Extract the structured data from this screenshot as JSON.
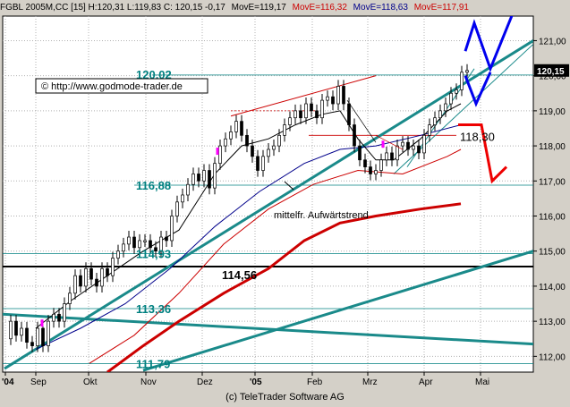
{
  "header": {
    "symbol_line": "FGBL 2005M,CC [15] H:120,31 L:119,83 C: 120,15 -0,17",
    "ma1": "MovE=119,17",
    "ma2": "MovE=116,32",
    "ma3": "MovE=118,63",
    "ma4": "MovE=117,91",
    "colors": {
      "ma1": "#000000",
      "ma2": "#cc0000",
      "ma3": "#00008b",
      "ma4": "#cc0000"
    }
  },
  "footer": "(c) TeleTrader Software AG",
  "chart_data": {
    "type": "candlestick",
    "x_tick_labels": [
      "'04",
      "Sep",
      "Okt",
      "Nov",
      "Dez",
      "'05",
      "Feb",
      "Mrz",
      "Apr",
      "Mai"
    ],
    "y_tick_labels": [
      "112,00",
      "113,00",
      "114,00",
      "115,00",
      "116,00",
      "117,00",
      "118,00",
      "119,00",
      "120,00",
      "121,00"
    ],
    "ylim": [
      111.55,
      121.7
    ],
    "last_price": "120,15",
    "levels": [
      {
        "label": "120,02",
        "value": 120.02,
        "color": "#008080"
      },
      {
        "label": "116,88",
        "value": 116.88,
        "color": "#008080"
      },
      {
        "label": "114,93",
        "value": 114.93,
        "color": "#008080"
      },
      {
        "label": "114,56",
        "value": 114.56,
        "color": "#000000"
      },
      {
        "label": "113,36",
        "value": 113.36,
        "color": "#008080"
      },
      {
        "label": "111,79",
        "value": 111.79,
        "color": "#008080"
      },
      {
        "label": "118,30",
        "value": 118.3,
        "color": "#cc0000"
      }
    ],
    "annotations": [
      {
        "text": "© http://www.godmode-trader.de"
      },
      {
        "text": "mittelfr. Aufwärtstrend"
      }
    ],
    "price_path": [
      [
        0,
        112.5
      ],
      [
        6,
        113.0
      ],
      [
        12,
        112.6
      ],
      [
        18,
        112.8
      ],
      [
        24,
        112.4
      ],
      [
        30,
        112.3
      ],
      [
        36,
        112.8
      ],
      [
        42,
        112.3
      ],
      [
        48,
        113.0
      ],
      [
        54,
        113.2
      ],
      [
        60,
        113.0
      ],
      [
        66,
        113.5
      ],
      [
        72,
        113.8
      ],
      [
        78,
        114.3
      ],
      [
        84,
        114.0
      ],
      [
        90,
        114.5
      ],
      [
        96,
        114.2
      ],
      [
        102,
        114.0
      ],
      [
        108,
        114.5
      ],
      [
        114,
        114.3
      ],
      [
        120,
        114.8
      ],
      [
        126,
        115.0
      ],
      [
        132,
        115.2
      ],
      [
        138,
        115.4
      ],
      [
        144,
        115.1
      ],
      [
        150,
        115.3
      ],
      [
        156,
        115.3
      ],
      [
        162,
        115.1
      ],
      [
        168,
        115.0
      ],
      [
        174,
        115.4
      ],
      [
        180,
        115.3
      ],
      [
        186,
        116.0
      ],
      [
        192,
        116.4
      ],
      [
        198,
        116.6
      ],
      [
        204,
        116.9
      ],
      [
        210,
        117.2
      ],
      [
        216,
        117.0
      ],
      [
        222,
        117.3
      ],
      [
        228,
        116.8
      ],
      [
        234,
        117.5
      ],
      [
        240,
        118.0
      ],
      [
        246,
        118.2
      ],
      [
        252,
        118.4
      ],
      [
        258,
        118.7
      ],
      [
        264,
        118.3
      ],
      [
        270,
        118.0
      ],
      [
        276,
        117.7
      ],
      [
        282,
        117.3
      ],
      [
        288,
        117.7
      ],
      [
        294,
        117.9
      ],
      [
        300,
        118.0
      ],
      [
        306,
        118.3
      ],
      [
        312,
        118.6
      ],
      [
        318,
        118.8
      ],
      [
        324,
        119.0
      ],
      [
        330,
        118.8
      ],
      [
        336,
        119.2
      ],
      [
        342,
        119.0
      ],
      [
        348,
        118.8
      ],
      [
        354,
        119.3
      ],
      [
        360,
        119.4
      ],
      [
        366,
        119.2
      ],
      [
        372,
        119.7
      ],
      [
        378,
        119.2
      ],
      [
        384,
        118.6
      ],
      [
        390,
        118.0
      ],
      [
        396,
        117.6
      ],
      [
        402,
        117.4
      ],
      [
        408,
        117.2
      ],
      [
        414,
        117.3
      ],
      [
        420,
        117.6
      ],
      [
        426,
        117.8
      ],
      [
        432,
        117.6
      ],
      [
        438,
        118.0
      ],
      [
        444,
        118.1
      ],
      [
        450,
        117.9
      ],
      [
        456,
        118.0
      ],
      [
        462,
        117.8
      ],
      [
        468,
        118.3
      ],
      [
        474,
        118.6
      ],
      [
        480,
        118.8
      ],
      [
        486,
        119.0
      ],
      [
        492,
        119.2
      ],
      [
        498,
        119.5
      ],
      [
        504,
        119.6
      ],
      [
        510,
        120.1
      ],
      [
        516,
        120.15
      ]
    ]
  }
}
